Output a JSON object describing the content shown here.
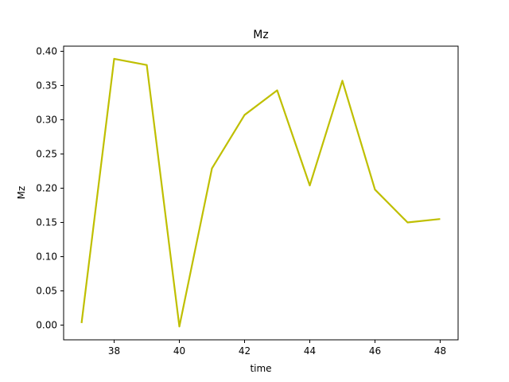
{
  "chart_data": {
    "type": "line",
    "title": "Mz",
    "xlabel": "time",
    "ylabel": "Mz",
    "xlim": [
      36.45,
      48.55
    ],
    "ylim": [
      -0.0215,
      0.4075
    ],
    "xticks": [
      38,
      40,
      42,
      44,
      46,
      48
    ],
    "xtick_labels": [
      "38",
      "40",
      "42",
      "44",
      "46",
      "48"
    ],
    "yticks": [
      0.0,
      0.05,
      0.1,
      0.15,
      0.2,
      0.25,
      0.3,
      0.35,
      0.4
    ],
    "ytick_labels": [
      "0.00",
      "0.05",
      "0.10",
      "0.15",
      "0.20",
      "0.25",
      "0.30",
      "0.35",
      "0.40"
    ],
    "grid": false,
    "series": [
      {
        "color": "#bfbf00",
        "x": [
          37,
          38,
          39,
          40,
          41,
          42,
          43,
          44,
          45,
          46,
          47,
          48
        ],
        "y": [
          0.003,
          0.389,
          0.38,
          -0.002,
          0.229,
          0.307,
          0.343,
          0.204,
          0.357,
          0.198,
          0.15,
          0.155
        ]
      }
    ]
  }
}
